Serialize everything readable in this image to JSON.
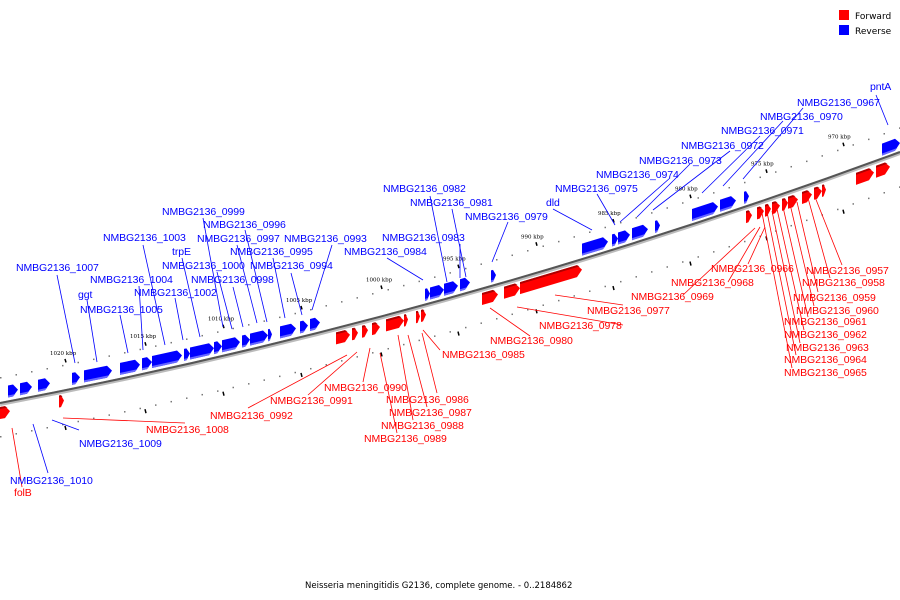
{
  "title": "Neisseria meningitidis G2136, complete genome. - 0..2184862",
  "legend": [
    {
      "label": "Forward",
      "color": "#ff0000"
    },
    {
      "label": "Reverse",
      "color": "#0000ff"
    }
  ],
  "scale_ticks": [
    "1020 kbp",
    "1015 kbp",
    "1010 kbp",
    "1005 kbp",
    "1000 kbp",
    "995 kbp",
    "990 kbp",
    "985 kbp",
    "980 kbp",
    "975 kbp",
    "970 kbp"
  ],
  "labels": {
    "reverse": [
      "pntA",
      "NMBG2136_0967",
      "NMBG2136_0970",
      "NMBG2136_0971",
      "NMBG2136_0972",
      "NMBG2136_0973",
      "NMBG2136_0974",
      "NMBG2136_0975",
      "dld",
      "NMBG2136_0979",
      "NMBG2136_0981",
      "NMBG2136_0982",
      "NMBG2136_0983",
      "NMBG2136_0984",
      "NMBG2136_0993",
      "NMBG2136_0994",
      "NMBG2136_0995",
      "NMBG2136_0996",
      "NMBG2136_0997",
      "NMBG2136_0998",
      "NMBG2136_0999",
      "NMBG2136_1000",
      "trpE",
      "NMBG2136_1002",
      "NMBG2136_1003",
      "NMBG2136_1004",
      "NMBG2136_1005",
      "ggt",
      "NMBG2136_1007",
      "NMBG2136_1009",
      "NMBG2136_1010"
    ],
    "forward": [
      "folB",
      "NMBG2136_1008",
      "NMBG2136_0992",
      "NMBG2136_0991",
      "NMBG2136_0990",
      "NMBG2136_0986",
      "NMBG2136_0987",
      "NMBG2136_0988",
      "NMBG2136_0989",
      "NMBG2136_0985",
      "NMBG2136_0980",
      "NMBG2136_0978",
      "NMBG2136_0977",
      "NMBG2136_0969",
      "NMBG2136_0968",
      "NMBG2136_0966",
      "NMBG2136_0957",
      "NMBG2136_0958",
      "NMBG2136_0959",
      "NMBG2136_0960",
      "NMBG2136_0961",
      "NMBG2136_0962",
      "NMBG2136_0963",
      "NMBG2136_0964",
      "NMBG2136_0965"
    ]
  }
}
